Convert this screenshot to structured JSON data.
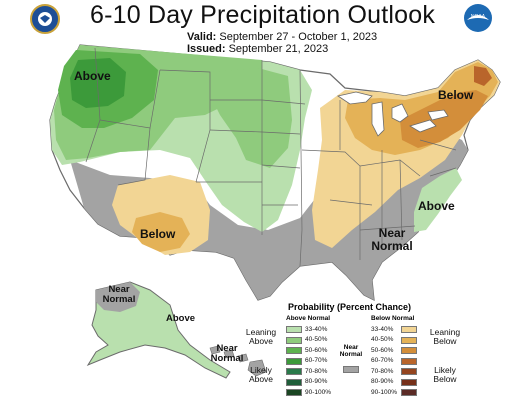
{
  "title": "6-10 Day Precipitation Outlook",
  "valid_label": "Valid:",
  "valid_value": "September 27 - October 1, 2023",
  "issued_label": "Issued:",
  "issued_value": "September 21, 2023",
  "logos": {
    "left": "noaa-seal-icon",
    "right": "noaa-logo-icon",
    "right_text": "NOAA"
  },
  "colors": {
    "above": [
      "#b9e0ae",
      "#8fcb7d",
      "#5eb24f",
      "#3c9a3a",
      "#2a7a4a",
      "#1f5e3a",
      "#1a4522"
    ],
    "below": [
      "#f2d594",
      "#e4b257",
      "#d38e3a",
      "#b9652b",
      "#944520",
      "#75301a",
      "#5b2b26"
    ],
    "near_normal": "#a3a3a3",
    "land": "#ffffff",
    "border": "#6b6b6b"
  },
  "map_labels": {
    "above_nw": "Above",
    "below_sw": "Below",
    "below_ne": "Below",
    "above_se": "Above",
    "near_normal_se": "Near Normal",
    "near_normal_ak": "Near Normal",
    "above_ak": "Above",
    "near_normal_hi": "Near Normal"
  },
  "legend": {
    "title": "Probability (Percent Chance)",
    "above_header": "Above Normal",
    "below_header": "Below Normal",
    "near_normal_label": "Near Normal",
    "leaning_above": "Leaning Above",
    "likely_above": "Likely Above",
    "leaning_below": "Leaning Below",
    "likely_below": "Likely Below",
    "ranges": [
      "33-40%",
      "40-50%",
      "50-60%",
      "60-70%",
      "70-80%",
      "80-90%",
      "90-100%"
    ]
  }
}
